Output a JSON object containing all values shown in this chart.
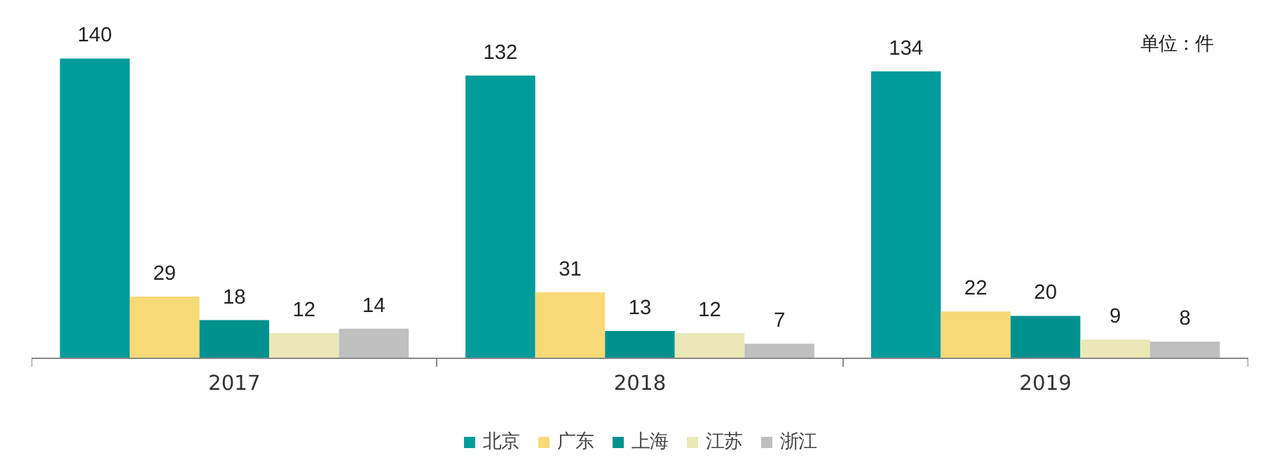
{
  "chart_data": {
    "type": "bar",
    "categories": [
      "2017",
      "2018",
      "2019"
    ],
    "series": [
      {
        "name": "北京",
        "color": "#009b9b",
        "values": [
          140,
          132,
          134
        ]
      },
      {
        "name": "广东",
        "color": "#f8d977",
        "values": [
          29,
          31,
          22
        ]
      },
      {
        "name": "上海",
        "color": "#00918f",
        "values": [
          18,
          13,
          20
        ]
      },
      {
        "name": "江苏",
        "color": "#ebe8b7",
        "values": [
          12,
          12,
          9
        ]
      },
      {
        "name": "浙江",
        "color": "#bfbfbf",
        "values": [
          14,
          7,
          8
        ]
      }
    ],
    "data_labels": true,
    "legend": "bottom",
    "grid": false,
    "annotations": [
      "单位：件"
    ]
  }
}
